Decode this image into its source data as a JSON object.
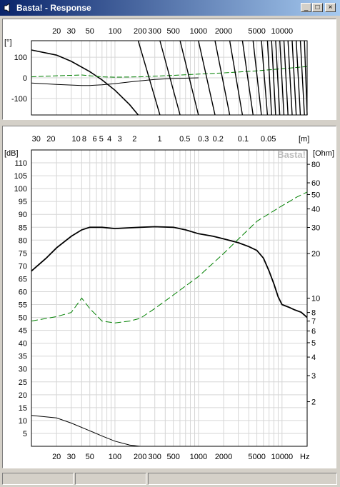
{
  "window": {
    "title": "Basta! - Response",
    "minimize_glyph": "_",
    "maximize_glyph": "□",
    "close_glyph": "×",
    "icon": "speaker-icon"
  },
  "phase_panel": {
    "y_unit_label": "[°]",
    "x_ticks": [
      "20",
      "30",
      "50",
      "100",
      "200",
      "300",
      "500",
      "1000",
      "2000",
      "5000",
      "10000"
    ],
    "y_ticks": [
      "100",
      "0",
      "-100"
    ]
  },
  "magnitude_panel": {
    "top_wavelength_ticks": [
      "30",
      "20",
      "10",
      "8",
      "6",
      "5",
      "4",
      "3",
      "2",
      "1",
      "0.5",
      "0.3",
      "0.2",
      "0.1",
      "0.05"
    ],
    "top_unit_label": "[m]",
    "left_unit_label": "[dB]",
    "right_unit_label": "[Ohm]",
    "watermark": "Basta!",
    "x_ticks": [
      "20",
      "30",
      "50",
      "100",
      "200",
      "300",
      "500",
      "1000",
      "2000",
      "5000",
      "10000"
    ],
    "x_unit_label": "Hz",
    "y_ticks": [
      "110",
      "105",
      "100",
      "95",
      "90",
      "85",
      "80",
      "75",
      "70",
      "65",
      "60",
      "55",
      "50",
      "45",
      "40",
      "35",
      "30",
      "25",
      "20",
      "15",
      "10",
      "5"
    ],
    "ohm_ticks": [
      "80",
      "60",
      "50",
      "40",
      "30",
      "20",
      "10",
      "8",
      "7",
      "6",
      "5",
      "4",
      "3",
      "2"
    ]
  },
  "colors": {
    "spl_curve": "#000000",
    "impedance_curve": "#008000",
    "grid": "#d6d6d6",
    "titlebar_start": "#0a246a",
    "titlebar_end": "#a6caf0"
  },
  "chart_data": [
    {
      "type": "line",
      "xscale": "log",
      "xlim": [
        10,
        20000
      ],
      "ylim": [
        -180,
        180
      ],
      "series": [
        {
          "x": [
            10,
            20,
            30,
            50,
            70,
            100,
            150,
            190
          ],
          "values": [
            135,
            110,
            80,
            30,
            -10,
            -60,
            -130,
            -180
          ]
        },
        {
          "x": [
            10,
            20,
            30,
            40,
            50,
            70,
            100,
            150,
            200,
            300,
            500,
            1000
          ],
          "values": [
            -25,
            -32,
            -35,
            -37,
            -37,
            -34,
            -28,
            -20,
            -15,
            -8,
            -3,
            0
          ]
        },
        {
          "x": [
            10,
            20,
            30,
            40,
            50,
            70,
            100,
            200,
            500,
            1000,
            2000,
            5000,
            10000,
            20000
          ],
          "values": [
            5,
            10,
            12,
            14,
            10,
            5,
            3,
            5,
            12,
            18,
            24,
            34,
            44,
            55
          ]
        }
      ]
    },
    {
      "type": "line",
      "xscale": "log",
      "xlim": [
        10,
        20000
      ],
      "ylim": [
        0,
        115
      ],
      "y2scale": "log",
      "y2lim": [
        1,
        100
      ],
      "series": [
        {
          "x": [
            10,
            15,
            20,
            30,
            40,
            50,
            70,
            100,
            150,
            200,
            300,
            500,
            700,
            1000,
            1500,
            2000,
            3000,
            4000,
            5000,
            6000,
            7000,
            8000,
            9000,
            10000,
            12000,
            14000,
            17000,
            20000
          ],
          "values": [
            68,
            73,
            77,
            81.5,
            84,
            85,
            85,
            84.5,
            84.8,
            85,
            85.2,
            85,
            84,
            82.5,
            81.5,
            80.5,
            79,
            77.5,
            76,
            73,
            68,
            63,
            58,
            55,
            54,
            53,
            52,
            50
          ]
        },
        {
          "x": [
            10,
            20,
            30,
            40,
            50,
            70,
            100,
            150,
            200,
            300,
            500,
            1000,
            2000,
            3000,
            5000,
            10000,
            15000,
            20000
          ],
          "values": [
            7,
            7.5,
            8,
            10,
            8.5,
            7,
            6.8,
            7,
            7.3,
            8.5,
            10.5,
            14,
            20,
            25,
            33,
            42,
            48,
            52
          ]
        },
        {
          "x": [
            10,
            20,
            30,
            50,
            70,
            100,
            150,
            200
          ],
          "values": [
            12,
            11,
            9,
            6,
            4,
            2,
            0.5,
            0
          ]
        }
      ]
    }
  ]
}
